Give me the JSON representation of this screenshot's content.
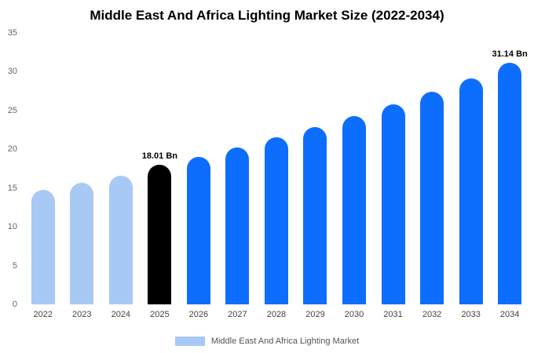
{
  "title": "Middle East And Africa Lighting Market Size (2022-2034)",
  "legend": {
    "label": "Middle East And Africa Lighting Market",
    "swatch_color": "#a9c9f5"
  },
  "chart_data": {
    "type": "bar",
    "title": "Middle East And Africa Lighting Market Size (2022-2034)",
    "xlabel": "",
    "ylabel": "",
    "ylim": [
      0,
      35
    ],
    "yticks": [
      0,
      5,
      10,
      15,
      20,
      25,
      30,
      35
    ],
    "grid": false,
    "legend_position": "bottom",
    "categories": [
      "2022",
      "2023",
      "2024",
      "2025",
      "2026",
      "2027",
      "2028",
      "2029",
      "2030",
      "2031",
      "2032",
      "2033",
      "2034"
    ],
    "values": [
      14.8,
      15.7,
      16.6,
      18.01,
      19.0,
      20.2,
      21.5,
      22.9,
      24.3,
      25.8,
      27.4,
      29.1,
      31.14
    ],
    "colors": [
      "#a9c9f5",
      "#a9c9f5",
      "#a9c9f5",
      "#000000",
      "#0d6efd",
      "#0d6efd",
      "#0d6efd",
      "#0d6efd",
      "#0d6efd",
      "#0d6efd",
      "#0d6efd",
      "#0d6efd",
      "#0d6efd"
    ],
    "annotations": [
      {
        "category": "2025",
        "text": "18.01 Bn"
      },
      {
        "category": "2034",
        "text": "31.14 Bn"
      }
    ],
    "series_colors": {
      "historical": "#a9c9f5",
      "base_year_highlight": "#000000",
      "forecast": "#0d6efd"
    }
  }
}
